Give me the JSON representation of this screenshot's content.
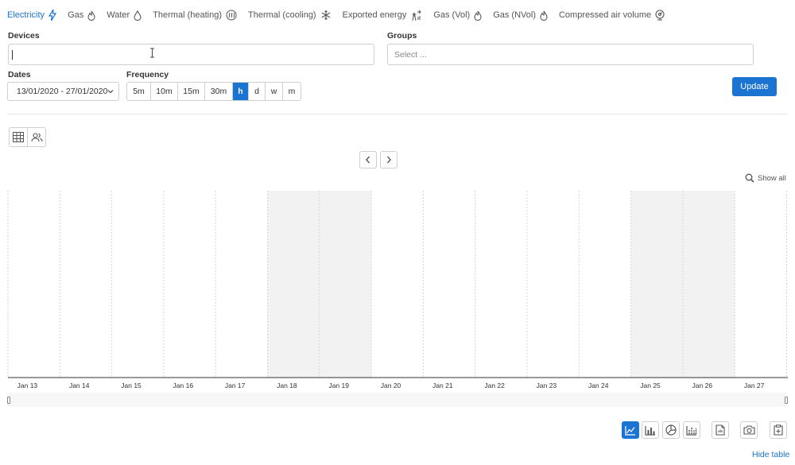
{
  "energy_tabs": [
    {
      "label": "Electricity",
      "icon": "lightning-icon",
      "active": true
    },
    {
      "label": "Gas",
      "icon": "flame-icon",
      "active": false
    },
    {
      "label": "Water",
      "icon": "droplet-icon",
      "active": false
    },
    {
      "label": "Thermal (heating)",
      "icon": "heat-waves-icon",
      "active": false
    },
    {
      "label": "Thermal (cooling)",
      "icon": "snowflake-icon",
      "active": false
    },
    {
      "label": "Exported energy",
      "icon": "export-grid-icon",
      "active": false
    },
    {
      "label": "Gas (Vol)",
      "icon": "flame-icon",
      "active": false
    },
    {
      "label": "Gas (NVol)",
      "icon": "flame-icon",
      "active": false
    },
    {
      "label": "Compressed air volume",
      "icon": "air-gauge-icon",
      "active": false
    }
  ],
  "filters": {
    "devices_label": "Devices",
    "devices_value": "",
    "groups_label": "Groups",
    "groups_placeholder": "Select ...",
    "dates_label": "Dates",
    "dates_value": "13/01/2020 - 27/01/2020",
    "frequency_label": "Frequency",
    "frequency_options": [
      "5m",
      "10m",
      "15m",
      "30m",
      "h",
      "d",
      "w",
      "m"
    ],
    "frequency_selected": "h",
    "update_label": "Update"
  },
  "chart_toolbar": {
    "show_all_label": "Show all"
  },
  "chart_data": {
    "type": "line",
    "series": [],
    "x_ticks": [
      "Jan 13",
      "Jan 14",
      "Jan 15",
      "Jan 16",
      "Jan 17",
      "Jan 18",
      "Jan 19",
      "Jan 20",
      "Jan 21",
      "Jan 22",
      "Jan 23",
      "Jan 24",
      "Jan 25",
      "Jan 26",
      "Jan 27"
    ],
    "weekend_bands": [
      [
        "Jan 18",
        "Jan 20"
      ],
      [
        "Jan 25",
        "Jan 27"
      ]
    ],
    "grid": "vertical-dashed"
  },
  "footer": {
    "hide_table_label": "Hide table"
  },
  "colors": {
    "accent": "#1b74d1",
    "weekend_band": "#f2f2f2"
  }
}
